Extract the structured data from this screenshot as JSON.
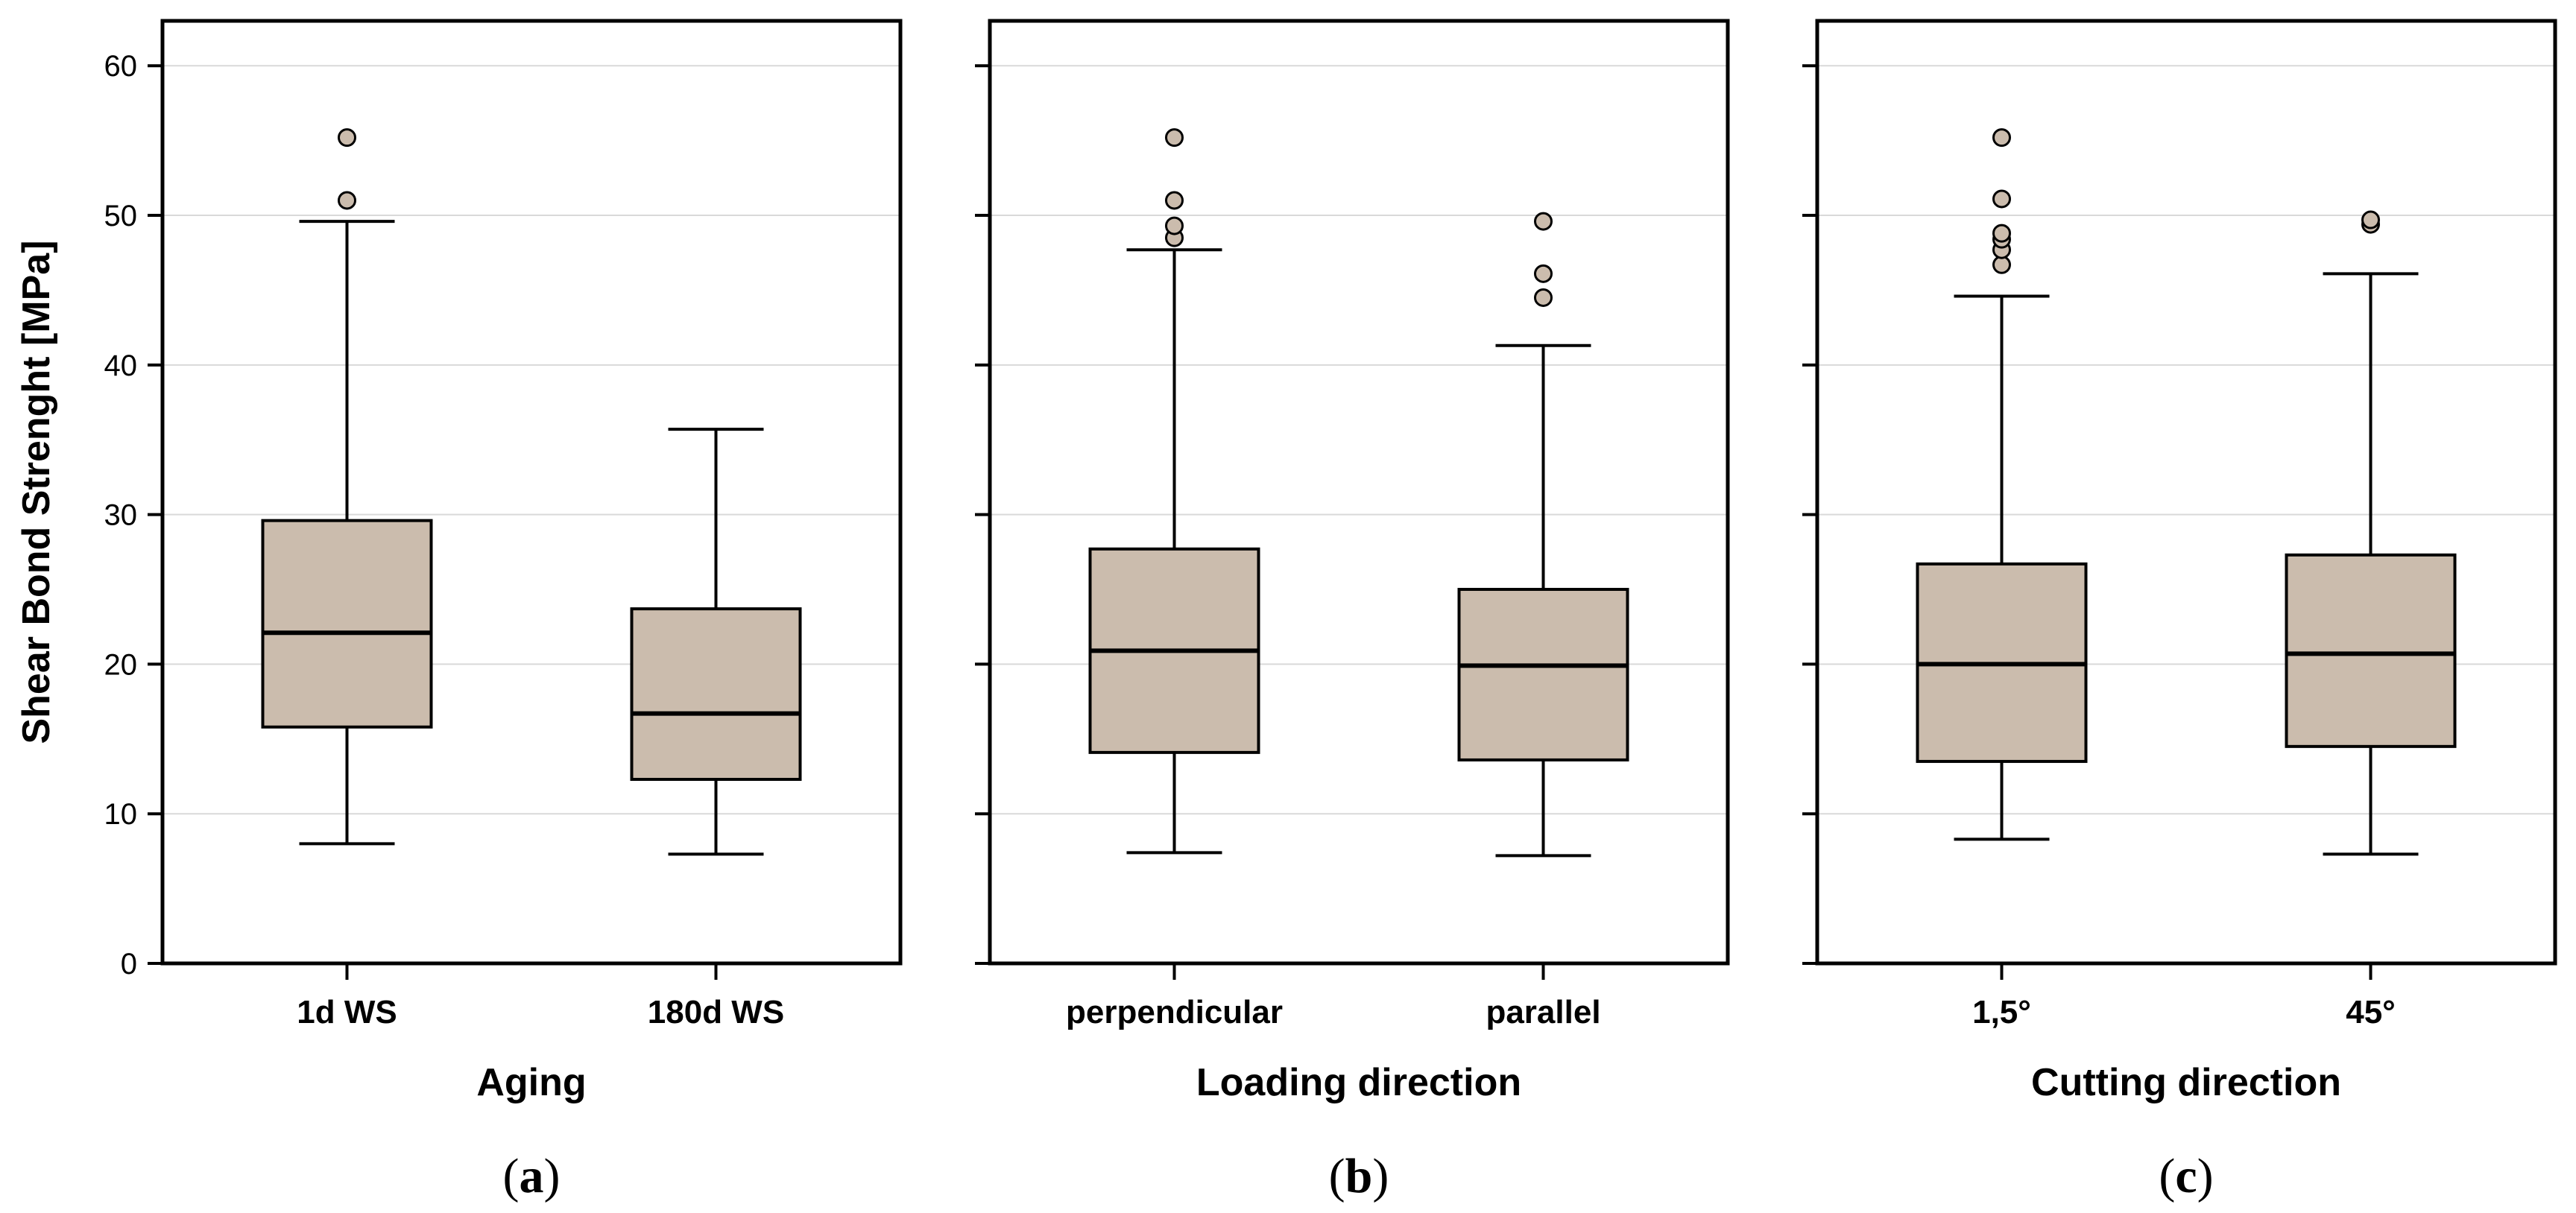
{
  "figure": {
    "panel_labels": [
      {
        "open": "(",
        "letter": "a",
        "close": ")"
      },
      {
        "open": "(",
        "letter": "b",
        "close": ")"
      },
      {
        "open": "(",
        "letter": "c",
        "close": ")"
      }
    ]
  },
  "colors": {
    "box_fill": "#cbbcad",
    "outlier_fill": "#cbbcad",
    "stroke": "#000000",
    "grid": "#d9d9d9"
  },
  "chart_data": [
    {
      "type": "box",
      "xlabel": "Aging",
      "ylabel": "Shear Bond Strenght [MPa]",
      "ylim": [
        0,
        63
      ],
      "yticks": [
        0,
        10,
        20,
        30,
        40,
        50,
        60
      ],
      "grid": true,
      "categories": [
        "1d WS",
        "180d WS"
      ],
      "boxes": [
        {
          "min": 8.0,
          "q1": 15.8,
          "median": 22.1,
          "q3": 29.6,
          "max": 49.6,
          "outliers": [
            51.0,
            55.2
          ]
        },
        {
          "min": 7.3,
          "q1": 12.3,
          "median": 16.7,
          "q3": 23.7,
          "max": 35.7,
          "outliers": []
        }
      ]
    },
    {
      "type": "box",
      "xlabel": "Loading direction",
      "ylabel": "",
      "ylim": [
        0,
        63
      ],
      "yticks": [
        0,
        10,
        20,
        30,
        40,
        50,
        60
      ],
      "grid": true,
      "categories": [
        "perpendicular",
        "parallel"
      ],
      "boxes": [
        {
          "min": 7.4,
          "q1": 14.1,
          "median": 20.9,
          "q3": 27.7,
          "max": 47.7,
          "outliers": [
            48.5,
            49.3,
            51.0,
            55.2
          ]
        },
        {
          "min": 7.2,
          "q1": 13.6,
          "median": 19.9,
          "q3": 25.0,
          "max": 41.3,
          "outliers": [
            44.5,
            46.1,
            49.6
          ]
        }
      ]
    },
    {
      "type": "box",
      "xlabel": "Cutting direction",
      "ylabel": "",
      "ylim": [
        0,
        63
      ],
      "yticks": [
        0,
        10,
        20,
        30,
        40,
        50,
        60
      ],
      "grid": true,
      "categories": [
        "1,5°",
        "45°"
      ],
      "boxes": [
        {
          "min": 8.3,
          "q1": 13.5,
          "median": 20.0,
          "q3": 26.7,
          "max": 44.6,
          "outliers": [
            46.7,
            47.7,
            48.4,
            48.8,
            51.1,
            55.2
          ]
        },
        {
          "min": 7.3,
          "q1": 14.5,
          "median": 20.7,
          "q3": 27.3,
          "max": 46.1,
          "outliers": [
            49.4,
            49.7
          ]
        }
      ]
    }
  ]
}
